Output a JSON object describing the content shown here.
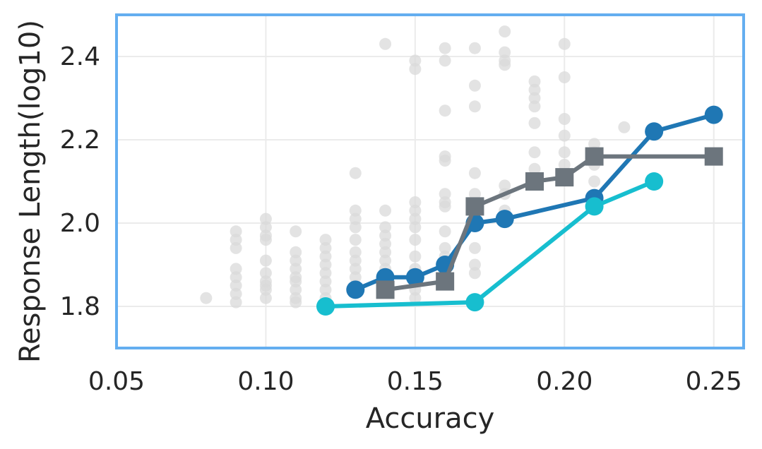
{
  "chart_data": {
    "type": "scatter",
    "title": "",
    "xlabel": "Accuracy",
    "ylabel": "Response Length(log10)",
    "xlim": [
      0.05,
      0.26
    ],
    "ylim": [
      1.7,
      2.5
    ],
    "xticks": [
      0.05,
      0.1,
      0.15,
      0.2,
      0.25
    ],
    "xtick_labels": [
      "0.05",
      "0.10",
      "0.15",
      "0.20",
      "0.25"
    ],
    "yticks": [
      1.8,
      2.0,
      2.2,
      2.4
    ],
    "ytick_labels": [
      "1.8",
      "2.0",
      "2.2",
      "2.4"
    ],
    "grid": true,
    "legend": "none",
    "colors": {
      "frame": "#64aef0",
      "background_points": "#d9d9d9",
      "blue": "#1f77b4",
      "gray": "#6c757d",
      "cyan": "#17becf"
    },
    "background_points": [
      [
        0.08,
        1.82
      ],
      [
        0.09,
        1.98
      ],
      [
        0.09,
        1.96
      ],
      [
        0.09,
        1.94
      ],
      [
        0.09,
        1.89
      ],
      [
        0.09,
        1.87
      ],
      [
        0.09,
        1.85
      ],
      [
        0.09,
        1.83
      ],
      [
        0.09,
        1.81
      ],
      [
        0.1,
        2.01
      ],
      [
        0.1,
        1.99
      ],
      [
        0.1,
        1.97
      ],
      [
        0.1,
        1.96
      ],
      [
        0.1,
        1.91
      ],
      [
        0.1,
        1.88
      ],
      [
        0.1,
        1.86
      ],
      [
        0.1,
        1.85
      ],
      [
        0.1,
        1.84
      ],
      [
        0.1,
        1.82
      ],
      [
        0.11,
        1.98
      ],
      [
        0.11,
        1.93
      ],
      [
        0.11,
        1.91
      ],
      [
        0.11,
        1.89
      ],
      [
        0.11,
        1.87
      ],
      [
        0.11,
        1.86
      ],
      [
        0.11,
        1.84
      ],
      [
        0.11,
        1.82
      ],
      [
        0.11,
        1.81
      ],
      [
        0.12,
        1.96
      ],
      [
        0.12,
        1.94
      ],
      [
        0.12,
        1.92
      ],
      [
        0.12,
        1.9
      ],
      [
        0.12,
        1.88
      ],
      [
        0.12,
        1.86
      ],
      [
        0.12,
        1.84
      ],
      [
        0.12,
        1.82
      ],
      [
        0.13,
        2.12
      ],
      [
        0.13,
        2.03
      ],
      [
        0.13,
        2.01
      ],
      [
        0.13,
        1.99
      ],
      [
        0.13,
        1.96
      ],
      [
        0.13,
        1.93
      ],
      [
        0.13,
        1.91
      ],
      [
        0.13,
        1.89
      ],
      [
        0.13,
        1.87
      ],
      [
        0.13,
        1.85
      ],
      [
        0.14,
        2.43
      ],
      [
        0.14,
        2.03
      ],
      [
        0.14,
        1.99
      ],
      [
        0.14,
        1.97
      ],
      [
        0.14,
        1.95
      ],
      [
        0.14,
        1.93
      ],
      [
        0.14,
        1.91
      ],
      [
        0.14,
        1.89
      ],
      [
        0.14,
        1.87
      ],
      [
        0.15,
        2.39
      ],
      [
        0.15,
        2.37
      ],
      [
        0.15,
        2.05
      ],
      [
        0.15,
        2.03
      ],
      [
        0.15,
        2.01
      ],
      [
        0.15,
        1.99
      ],
      [
        0.15,
        1.96
      ],
      [
        0.15,
        1.92
      ],
      [
        0.15,
        1.89
      ],
      [
        0.15,
        1.86
      ],
      [
        0.15,
        1.84
      ],
      [
        0.15,
        1.82
      ],
      [
        0.16,
        2.42
      ],
      [
        0.16,
        2.39
      ],
      [
        0.16,
        2.27
      ],
      [
        0.16,
        2.16
      ],
      [
        0.16,
        2.15
      ],
      [
        0.16,
        2.07
      ],
      [
        0.16,
        2.05
      ],
      [
        0.16,
        2.04
      ],
      [
        0.16,
        1.98
      ],
      [
        0.16,
        1.94
      ],
      [
        0.16,
        1.92
      ],
      [
        0.17,
        2.42
      ],
      [
        0.17,
        2.33
      ],
      [
        0.17,
        2.28
      ],
      [
        0.17,
        2.12
      ],
      [
        0.17,
        2.07
      ],
      [
        0.17,
        1.94
      ],
      [
        0.17,
        1.9
      ],
      [
        0.17,
        1.88
      ],
      [
        0.18,
        2.46
      ],
      [
        0.18,
        2.41
      ],
      [
        0.18,
        2.39
      ],
      [
        0.18,
        2.38
      ],
      [
        0.18,
        2.09
      ],
      [
        0.18,
        2.07
      ],
      [
        0.18,
        2.03
      ],
      [
        0.19,
        2.34
      ],
      [
        0.19,
        2.32
      ],
      [
        0.19,
        2.3
      ],
      [
        0.19,
        2.28
      ],
      [
        0.19,
        2.24
      ],
      [
        0.19,
        2.17
      ],
      [
        0.19,
        2.13
      ],
      [
        0.19,
        2.1
      ],
      [
        0.2,
        2.43
      ],
      [
        0.2,
        2.35
      ],
      [
        0.2,
        2.25
      ],
      [
        0.2,
        2.21
      ],
      [
        0.2,
        2.17
      ],
      [
        0.2,
        2.14
      ],
      [
        0.2,
        2.11
      ],
      [
        0.21,
        2.19
      ],
      [
        0.21,
        2.17
      ],
      [
        0.21,
        2.14
      ],
      [
        0.21,
        2.1
      ],
      [
        0.22,
        2.23
      ]
    ],
    "series": [
      {
        "color": "#1f77b4",
        "marker": "circle",
        "points": [
          [
            0.13,
            1.84
          ],
          [
            0.14,
            1.87
          ],
          [
            0.15,
            1.87
          ],
          [
            0.16,
            1.9
          ],
          [
            0.17,
            2.0
          ],
          [
            0.18,
            2.01
          ],
          [
            0.21,
            2.06
          ],
          [
            0.23,
            2.22
          ],
          [
            0.25,
            2.26
          ]
        ]
      },
      {
        "color": "#6c757d",
        "marker": "square",
        "points": [
          [
            0.14,
            1.84
          ],
          [
            0.16,
            1.86
          ],
          [
            0.17,
            2.04
          ],
          [
            0.19,
            2.1
          ],
          [
            0.2,
            2.11
          ],
          [
            0.21,
            2.16
          ],
          [
            0.25,
            2.16
          ]
        ]
      },
      {
        "color": "#17becf",
        "marker": "circle",
        "points": [
          [
            0.12,
            1.8
          ],
          [
            0.17,
            1.81
          ],
          [
            0.21,
            2.04
          ],
          [
            0.23,
            2.1
          ]
        ]
      }
    ]
  }
}
